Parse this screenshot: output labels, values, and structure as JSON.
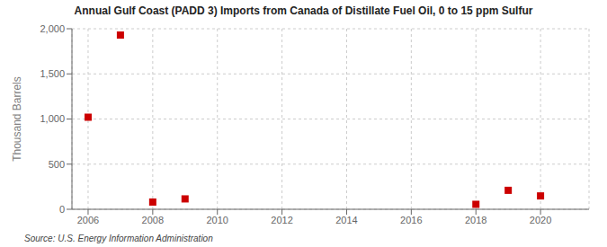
{
  "chart_data": {
    "type": "scatter",
    "title": "Annual Gulf Coast (PADD 3) Imports from Canada of Distillate Fuel Oil, 0 to 15 ppm Sulfur",
    "y_label": "Thousand Barrels",
    "annotations": [
      "Source: U.S. Energy Information Administration"
    ],
    "x": [
      2006,
      2007,
      2008,
      2009,
      2018,
      2019,
      2020
    ],
    "values": [
      1020,
      1930,
      80,
      115,
      55,
      210,
      148
    ],
    "xlim": [
      2005.5,
      2021.5
    ],
    "ylim": [
      0,
      2000
    ],
    "xticks": [
      2006,
      2008,
      2010,
      2012,
      2014,
      2016,
      2018,
      2020
    ],
    "yticks": [
      0,
      500,
      {
        "value": 1000,
        "label": "1,000"
      },
      {
        "value": 1500,
        "label": "1,500"
      },
      {
        "value": 2000,
        "label": "2,000"
      }
    ],
    "color": "#cc0000",
    "marker": "square",
    "grid": true
  }
}
